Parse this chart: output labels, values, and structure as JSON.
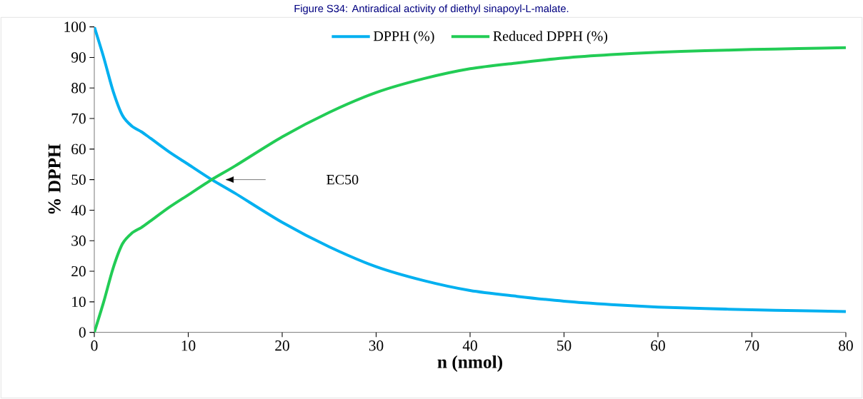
{
  "chart_data": {
    "type": "line",
    "title": "Figure S34: Antiradical activity of diethyl sinapoyl-L-malate.",
    "xlabel": "n (nmol)",
    "ylabel": "% DPPH",
    "x": [
      0,
      1,
      2,
      3,
      4,
      5,
      6,
      8,
      10,
      12.5,
      15,
      20,
      25,
      30,
      35,
      40,
      45,
      50,
      55,
      60,
      65,
      70,
      75,
      80
    ],
    "series": [
      {
        "name": "DPPH (%)",
        "color": "#00b0f0",
        "values": [
          100,
          90,
          79,
          71,
          67.5,
          65.7,
          63.5,
          59,
          55,
          50,
          45.5,
          36,
          28,
          21.5,
          17,
          13.7,
          11.8,
          10.2,
          9.1,
          8.3,
          7.8,
          7.4,
          7.1,
          6.8
        ]
      },
      {
        "name": "Reduced DPPH (%)",
        "color": "#22cc55",
        "values": [
          0,
          10,
          21,
          29,
          32.5,
          34.3,
          36.5,
          41,
          45,
          50,
          54.5,
          64,
          72,
          78.5,
          83,
          86.3,
          88.2,
          89.8,
          90.9,
          91.7,
          92.2,
          92.6,
          92.9,
          93.2
        ]
      }
    ],
    "xlim": [
      0,
      80
    ],
    "xticks": [
      0,
      10,
      20,
      30,
      40,
      50,
      60,
      70,
      80
    ],
    "ylim": [
      0,
      100
    ],
    "yticks": [
      0,
      10,
      20,
      30,
      40,
      50,
      60,
      70,
      80,
      90,
      100
    ],
    "legend": "top",
    "grid": false,
    "marker": "none",
    "line_style": "solid",
    "annotations": [
      "EC50"
    ]
  }
}
